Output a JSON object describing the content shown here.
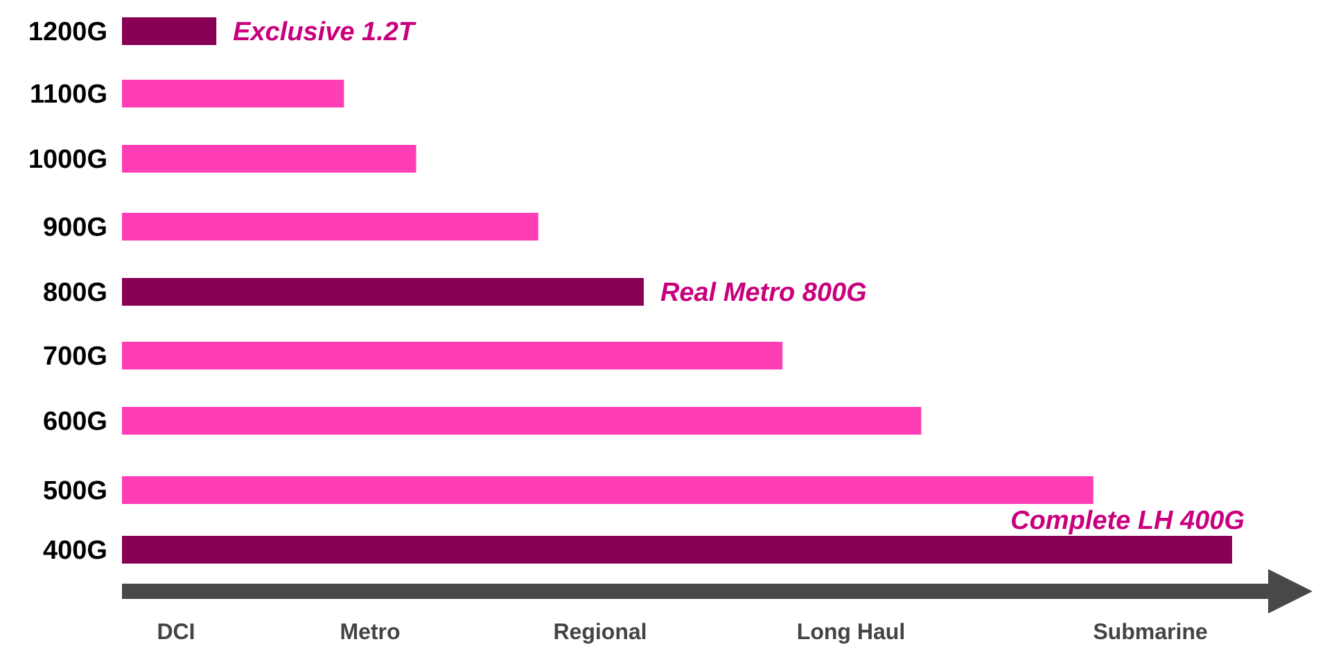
{
  "chart_data": {
    "type": "bar",
    "orientation": "horizontal",
    "title": "",
    "xlabel": "",
    "ylabel": "",
    "categories": [
      "1200G",
      "1100G",
      "1000G",
      "900G",
      "800G",
      "700G",
      "600G",
      "500G",
      "400G"
    ],
    "values": [
      0.085,
      0.2,
      0.265,
      0.375,
      0.47,
      0.595,
      0.72,
      0.875,
      1.0
    ],
    "value_unit": "relative reach (fraction of longest bar)",
    "highlighted": [
      true,
      false,
      false,
      false,
      true,
      false,
      false,
      false,
      true
    ],
    "annotations": [
      {
        "category": "1200G",
        "text": "Exclusive 1.2T"
      },
      {
        "category": "800G",
        "text": "Real Metro 800G"
      },
      {
        "category": "400G",
        "text": "Complete LH 400G"
      }
    ],
    "x_axis_labels": [
      "DCI",
      "Metro",
      "Regional",
      "Long Haul",
      "Submarine"
    ],
    "grid": false,
    "legend": "none",
    "colors": {
      "highlight_bar": "#880055",
      "normal_bar": "#ff3db4",
      "annotation_text": "#c8007e",
      "axis_arrow": "#484848",
      "category_text": "#000000",
      "x_label_text": "#444444"
    }
  }
}
